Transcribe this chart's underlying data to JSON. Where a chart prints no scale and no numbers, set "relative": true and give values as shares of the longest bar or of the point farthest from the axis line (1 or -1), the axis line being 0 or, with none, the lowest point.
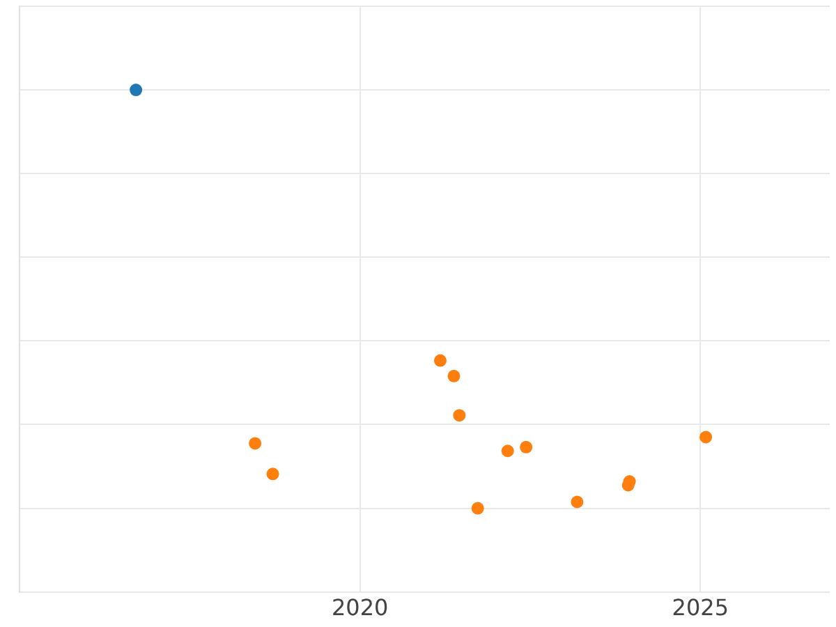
{
  "chart_data": {
    "type": "scatter",
    "relative": true,
    "grid": true,
    "marker": "circle",
    "xlim": [
      2015,
      2026.9
    ],
    "xticks": [
      2020,
      2025
    ],
    "tick_labels": "x",
    "series": [
      {
        "color": "#1f77b4",
        "x": [
          2016.71
        ],
        "values": [
          1
        ]
      },
      {
        "color": "#ff7f0e",
        "x": [
          2018.46,
          2018.72,
          2021.18,
          2021.38,
          2021.46,
          2021.73,
          2022.17,
          2022.44,
          2023.19,
          2023.96,
          2023.94,
          2025.08
        ],
        "values": [
          0.155,
          0.082,
          0.353,
          0.316,
          0.222,
          0,
          0.137,
          0.146,
          0.015,
          0.064,
          0.055,
          0.17
        ]
      }
    ]
  }
}
